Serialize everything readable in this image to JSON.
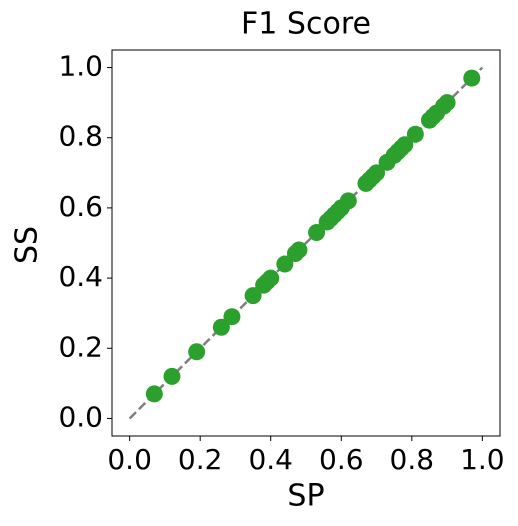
{
  "chart_data": {
    "type": "scatter",
    "title": "F1 Score",
    "xlabel": "SP",
    "ylabel": "SS",
    "x": [
      0.07,
      0.12,
      0.19,
      0.26,
      0.29,
      0.35,
      0.38,
      0.39,
      0.4,
      0.44,
      0.47,
      0.48,
      0.53,
      0.56,
      0.57,
      0.58,
      0.59,
      0.6,
      0.62,
      0.67,
      0.68,
      0.69,
      0.7,
      0.73,
      0.75,
      0.76,
      0.77,
      0.78,
      0.81,
      0.85,
      0.86,
      0.87,
      0.89,
      0.9,
      0.97
    ],
    "values": [
      0.07,
      0.12,
      0.19,
      0.26,
      0.29,
      0.35,
      0.38,
      0.39,
      0.4,
      0.44,
      0.47,
      0.48,
      0.53,
      0.56,
      0.57,
      0.58,
      0.59,
      0.6,
      0.62,
      0.67,
      0.68,
      0.69,
      0.7,
      0.73,
      0.75,
      0.76,
      0.77,
      0.78,
      0.81,
      0.85,
      0.86,
      0.87,
      0.89,
      0.9,
      0.97
    ],
    "color": "#2ca02c",
    "reference_line": {
      "x": [
        0,
        1
      ],
      "y": [
        0,
        1
      ],
      "color": "#808080",
      "style": "dashed"
    },
    "xlim": [
      -0.05,
      1.05
    ],
    "ylim": [
      -0.05,
      1.05
    ],
    "xticks": [
      {
        "value": 0,
        "label": "0.0"
      },
      0.2,
      0.4,
      0.6,
      0.8,
      {
        "value": 1,
        "label": "1.0"
      }
    ],
    "yticks": [
      {
        "value": 0,
        "label": "0.0"
      },
      0.2,
      0.4,
      0.6,
      0.8,
      {
        "value": 1,
        "label": "1.0"
      }
    ]
  }
}
